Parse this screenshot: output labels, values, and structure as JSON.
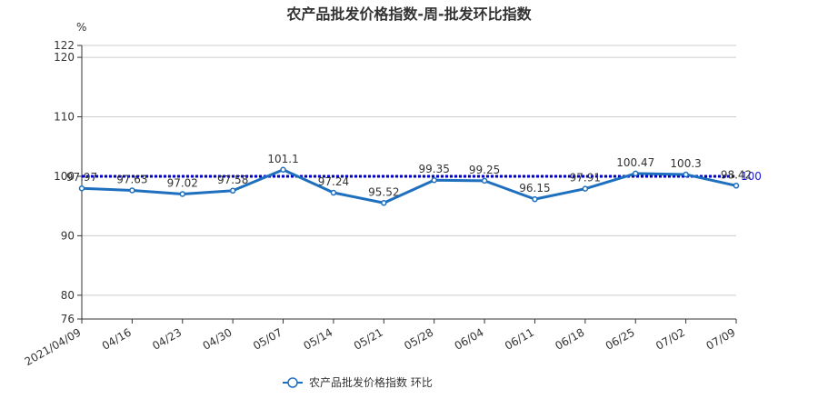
{
  "chart_data": {
    "type": "line",
    "title": "农产品批发价格指数-周-批发环比指数",
    "ylabel": "%",
    "categories": [
      "2021/04/09",
      "04/16",
      "04/23",
      "04/30",
      "05/07",
      "05/14",
      "05/21",
      "05/28",
      "06/04",
      "06/11",
      "06/18",
      "06/25",
      "07/02",
      "07/09"
    ],
    "series": [
      {
        "name": "农产品批发价格指数  环比",
        "values": [
          97.97,
          97.63,
          97.02,
          97.58,
          101.1,
          97.24,
          95.52,
          99.35,
          99.25,
          96.15,
          97.91,
          100.47,
          100.3,
          98.42
        ],
        "color": "#1f6fbf"
      }
    ],
    "reference_line": {
      "value": 100,
      "label": "100",
      "color": "#0000c8",
      "style": "dotted"
    },
    "yticks": [
      76,
      80,
      90,
      100,
      110,
      120,
      122
    ],
    "ylim": [
      76,
      122
    ],
    "grid": true,
    "legend_position": "bottom"
  }
}
